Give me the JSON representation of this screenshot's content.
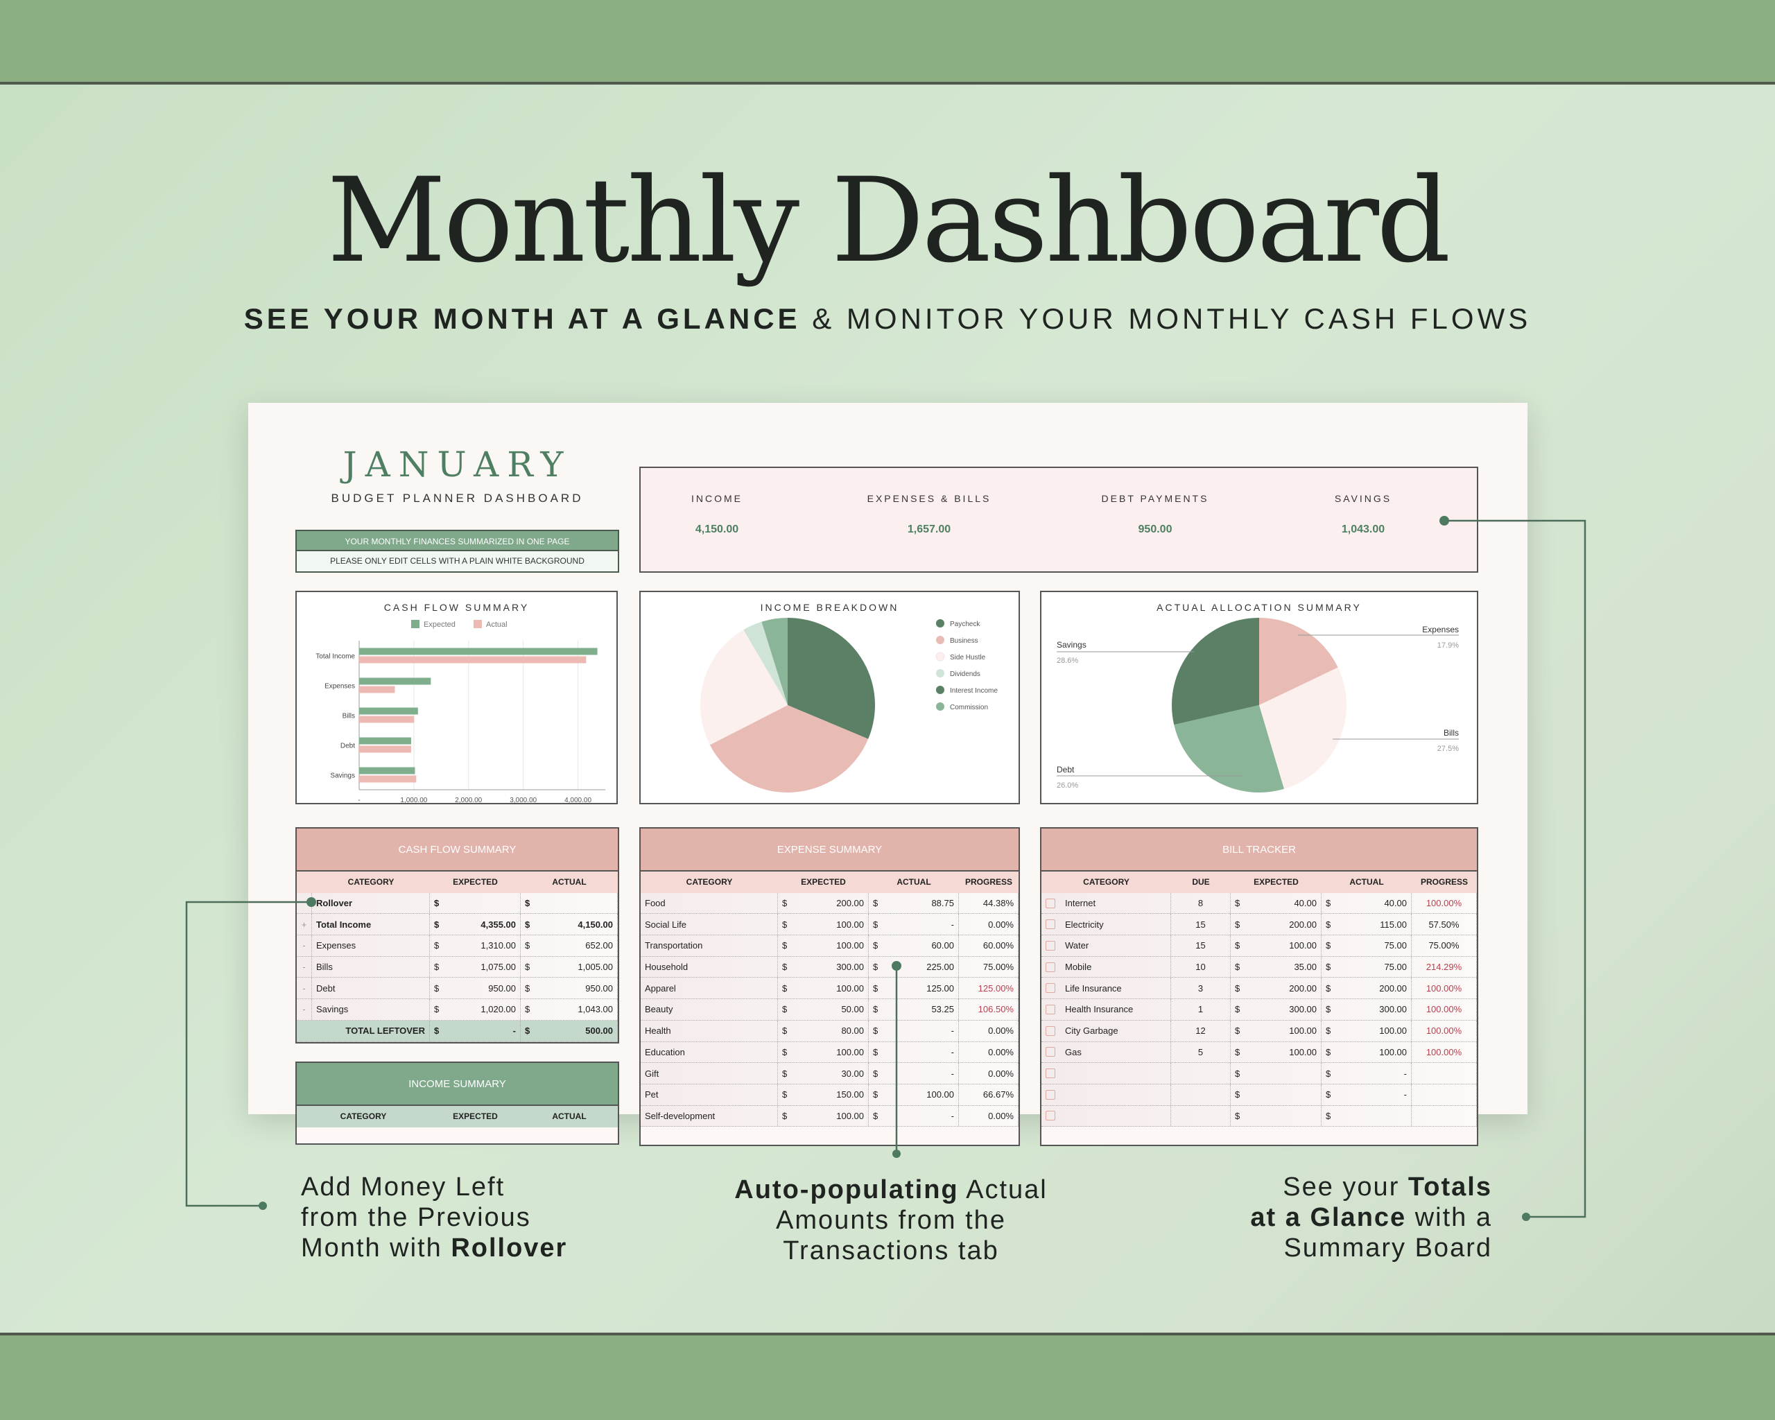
{
  "hero": {
    "title": "Monthly Dashboard",
    "subtitle_bold": "SEE YOUR MONTH AT A GLANCE",
    "subtitle_rest": " & MONITOR YOUR MONTHLY CASH FLOWS"
  },
  "dashboard": {
    "month": "JANUARY",
    "subtitle": "BUDGET PLANNER DASHBOARD",
    "banner_primary": "YOUR MONTHLY FINANCES SUMMARIZED IN ONE PAGE",
    "banner_secondary": "PLEASE ONLY EDIT CELLS WITH A PLAIN WHITE BACKGROUND",
    "kpis": [
      {
        "label": "INCOME",
        "value": "4,150.00"
      },
      {
        "label": "EXPENSES & BILLS",
        "value": "1,657.00"
      },
      {
        "label": "DEBT PAYMENTS",
        "value": "950.00"
      },
      {
        "label": "SAVINGS",
        "value": "1,043.00"
      }
    ],
    "colors": {
      "green_dark": "#5b8066",
      "green_mid": "#8bb598",
      "green_light": "#cfe3d6",
      "pink": "#e8bcb5",
      "pink_light": "#fcf0ee",
      "red_text": "#b6414f"
    }
  },
  "chart_data": [
    {
      "type": "bar",
      "orientation": "horizontal",
      "title": "CASH FLOW SUMMARY",
      "categories": [
        "Total Income",
        "Expenses",
        "Bills",
        "Debt",
        "Savings"
      ],
      "series": [
        {
          "name": "Expected",
          "values": [
            4355,
            1310,
            1075,
            950,
            1020
          ],
          "color": "#7fae8d"
        },
        {
          "name": "Actual",
          "values": [
            4150,
            652,
            1005,
            950,
            1043
          ],
          "color": "#ecb9b3"
        }
      ],
      "xlim": [
        0,
        4500
      ],
      "xticks": [
        "-",
        "1,000.00",
        "2,000.00",
        "3,000.00",
        "4,000.00"
      ],
      "grid": true,
      "legend": "top"
    },
    {
      "type": "pie",
      "title": "INCOME BREAKDOWN",
      "legend": "right",
      "labels": [
        "Paycheck",
        "Business",
        "Side Hustle",
        "Dividends",
        "Interest Income",
        "Commission"
      ],
      "values": [
        1300,
        1500,
        1000,
        150,
        0,
        200
      ],
      "colors": [
        "#5b8066",
        "#e8bcb5",
        "#fcf0ee",
        "#cfe3d6",
        "#5b8066",
        "#8bb598"
      ]
    },
    {
      "type": "pie",
      "title": "ACTUAL ALLOCATION SUMMARY",
      "labels": [
        "Expenses",
        "Bills",
        "Debt",
        "Savings"
      ],
      "values": [
        17.9,
        27.5,
        26.0,
        28.6
      ],
      "value_labels": [
        "17.9%",
        "27.5%",
        "26.0%",
        "28.6%"
      ],
      "colors": [
        "#e8bcb5",
        "#fcf0ee",
        "#8bb598",
        "#5b8066"
      ]
    }
  ],
  "cash_flow_table": {
    "title": "CASH FLOW SUMMARY",
    "columns": [
      "CATEGORY",
      "EXPECTED",
      "ACTUAL"
    ],
    "rows": [
      {
        "m": "",
        "cat": "Rollover",
        "exp": "",
        "act": "",
        "bold": true
      },
      {
        "m": "+",
        "cat": "Total Income",
        "exp": "4,355.00",
        "act": "4,150.00",
        "bold": true
      },
      {
        "m": "-",
        "cat": "Expenses",
        "exp": "1,310.00",
        "act": "652.00"
      },
      {
        "m": "-",
        "cat": "Bills",
        "exp": "1,075.00",
        "act": "1,005.00"
      },
      {
        "m": "-",
        "cat": "Debt",
        "exp": "950.00",
        "act": "950.00"
      },
      {
        "m": "-",
        "cat": "Savings",
        "exp": "1,020.00",
        "act": "1,043.00"
      }
    ],
    "total": {
      "label": "TOTAL LEFTOVER",
      "exp": "-",
      "act": "500.00"
    },
    "currency": "$"
  },
  "income_table": {
    "title": "INCOME SUMMARY",
    "columns": [
      "CATEGORY",
      "EXPECTED",
      "ACTUAL"
    ]
  },
  "expense_table": {
    "title": "EXPENSE SUMMARY",
    "columns": [
      "CATEGORY",
      "EXPECTED",
      "ACTUAL",
      "PROGRESS"
    ],
    "rows": [
      [
        "Food",
        "200.00",
        "88.75",
        "44.38%"
      ],
      [
        "Social Life",
        "100.00",
        "-",
        "0.00%"
      ],
      [
        "Transportation",
        "100.00",
        "60.00",
        "60.00%"
      ],
      [
        "Household",
        "300.00",
        "225.00",
        "75.00%"
      ],
      [
        "Apparel",
        "100.00",
        "125.00",
        "125.00%"
      ],
      [
        "Beauty",
        "50.00",
        "53.25",
        "106.50%"
      ],
      [
        "Health",
        "80.00",
        "-",
        "0.00%"
      ],
      [
        "Education",
        "100.00",
        "-",
        "0.00%"
      ],
      [
        "Gift",
        "30.00",
        "-",
        "0.00%"
      ],
      [
        "Pet",
        "150.00",
        "100.00",
        "66.67%"
      ],
      [
        "Self-development",
        "100.00",
        "-",
        "0.00%"
      ]
    ]
  },
  "bill_table": {
    "title": "BILL TRACKER",
    "columns": [
      "CATEGORY",
      "DUE",
      "EXPECTED",
      "ACTUAL",
      "PROGRESS"
    ],
    "rows": [
      [
        "Internet",
        "8",
        "40.00",
        "40.00",
        "100.00%"
      ],
      [
        "Electricity",
        "15",
        "200.00",
        "115.00",
        "57.50%"
      ],
      [
        "Water",
        "15",
        "100.00",
        "75.00",
        "75.00%"
      ],
      [
        "Mobile",
        "10",
        "35.00",
        "75.00",
        "214.29%"
      ],
      [
        "Life Insurance",
        "3",
        "200.00",
        "200.00",
        "100.00%"
      ],
      [
        "Health Insurance",
        "1",
        "300.00",
        "300.00",
        "100.00%"
      ],
      [
        "City Garbage",
        "12",
        "100.00",
        "100.00",
        "100.00%"
      ],
      [
        "Gas",
        "5",
        "100.00",
        "100.00",
        "100.00%"
      ],
      [
        "",
        "",
        "",
        "-",
        ""
      ],
      [
        "",
        "",
        "",
        "-",
        ""
      ],
      [
        "",
        "",
        "",
        "",
        ""
      ]
    ]
  },
  "annotations": {
    "left": {
      "l1": "Add Money Left",
      "l2": "from the Previous",
      "l3a": "Month with ",
      "l3b": "Rollover"
    },
    "center": {
      "l1a": "Auto-populating",
      "l1b": " Actual",
      "l2": "Amounts from the",
      "l3": "Transactions tab"
    },
    "right": {
      "l1a": "See your ",
      "l1b": "Totals",
      "l2a": "at a Glance",
      "l2b": " with a",
      "l3": "Summary Board"
    }
  }
}
